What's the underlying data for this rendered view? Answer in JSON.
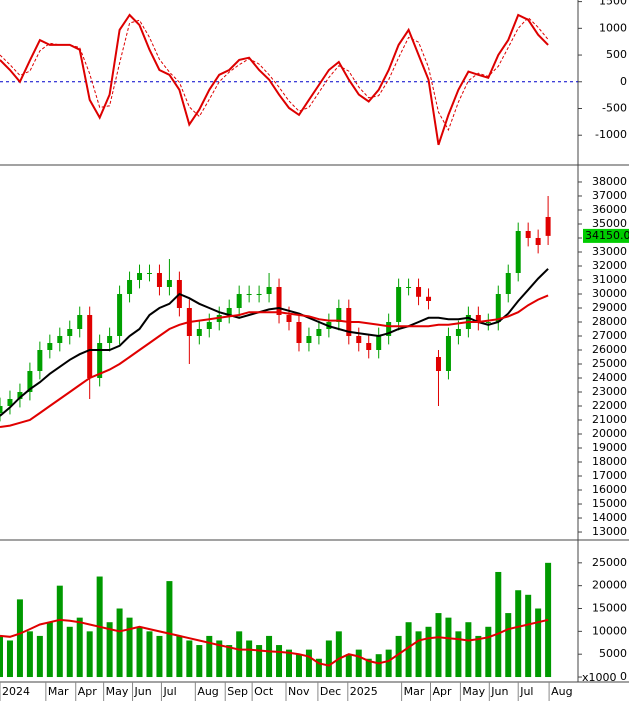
{
  "chart_data": [
    {
      "type": "line",
      "ylim": [
        -1520,
        1530
      ],
      "yticks": [
        -1000,
        -500,
        0,
        500,
        1000,
        1500
      ],
      "xlim": [
        0,
        58
      ],
      "zero_line": {
        "value": 0,
        "color": "#0000cc"
      },
      "series": [
        {
          "color": "#dd0000",
          "style": "solid",
          "values": [
            410,
            220,
            0,
            400,
            780,
            690,
            690,
            690,
            600,
            -340,
            -670,
            -240,
            970,
            1250,
            1060,
            600,
            220,
            130,
            -150,
            -800,
            -520,
            -150,
            130,
            220,
            410,
            450,
            220,
            40,
            -240,
            -490,
            -620,
            -340,
            -60,
            220,
            370,
            40,
            -240,
            -370,
            -150,
            220,
            690,
            970,
            500,
            40,
            -1180,
            -620,
            -150,
            190,
            130,
            75,
            500,
            780,
            1250,
            1160,
            880,
            690
          ]
        },
        {
          "color": "#dd0000",
          "style": "dashed",
          "values": [
            500,
            320,
            120,
            200,
            580,
            720,
            690,
            690,
            640,
            150,
            -480,
            -450,
            350,
            1100,
            1150,
            830,
            420,
            180,
            -10,
            -470,
            -650,
            -330,
            0,
            180,
            320,
            430,
            330,
            130,
            -100,
            -360,
            -550,
            -480,
            -200,
            80,
            300,
            200,
            -100,
            -300,
            -260,
            40,
            450,
            830,
            740,
            270,
            -570,
            -900,
            -380,
            20,
            160,
            100,
            290,
            640,
            1000,
            1200,
            1020,
            790
          ]
        }
      ]
    },
    {
      "type": "candlestick",
      "ylim": [
        12430,
        39070
      ],
      "xlim": [
        0,
        58
      ],
      "yticks": [
        13000,
        14000,
        15000,
        16000,
        17000,
        18000,
        19000,
        20000,
        21000,
        22000,
        23000,
        24000,
        25000,
        26000,
        27000,
        28000,
        29000,
        30000,
        31000,
        32000,
        33000,
        34000,
        35000,
        36000,
        37000,
        38000
      ],
      "up_color": "#00a000",
      "down_color": "#e00000",
      "open": [
        21500,
        22000,
        22500,
        23000,
        24500,
        26000,
        26500,
        27000,
        27500,
        28500,
        24000,
        26500,
        27000,
        30000,
        31000,
        31500,
        31500,
        30500,
        31000,
        29000,
        27000,
        27500,
        28000,
        28500,
        29000,
        30000,
        30000,
        30000,
        30500,
        28500,
        28000,
        26500,
        27000,
        27500,
        28000,
        29000,
        27000,
        26500,
        26000,
        27000,
        28000,
        30500,
        30500,
        29800,
        25500,
        24500,
        27000,
        27500,
        28500,
        28000,
        28000,
        30000,
        31500,
        34500,
        34000,
        35500
      ],
      "high": [
        22600,
        23100,
        23600,
        25100,
        26600,
        27100,
        27600,
        28100,
        29100,
        29100,
        27100,
        27600,
        30600,
        31600,
        32100,
        32100,
        32100,
        32500,
        31600,
        29600,
        28100,
        28600,
        29100,
        29600,
        30600,
        30600,
        30600,
        31500,
        31100,
        29100,
        28600,
        27600,
        28100,
        28600,
        29600,
        29600,
        27600,
        27100,
        27600,
        28600,
        31100,
        31100,
        31100,
        30400,
        26000,
        27600,
        28100,
        29100,
        29100,
        28600,
        30600,
        32100,
        35100,
        35100,
        34600,
        37000
      ],
      "low": [
        20900,
        21400,
        21900,
        22400,
        23900,
        25400,
        25900,
        26400,
        26900,
        22500,
        23400,
        25900,
        26400,
        29400,
        30400,
        30900,
        29900,
        29900,
        28400,
        25000,
        26400,
        26900,
        27400,
        27900,
        28400,
        29400,
        29400,
        29400,
        27900,
        27400,
        25900,
        25900,
        26400,
        26900,
        27400,
        26400,
        25900,
        25400,
        25400,
        26400,
        27400,
        29900,
        29200,
        28900,
        22000,
        23900,
        26400,
        26900,
        27400,
        27400,
        27400,
        29400,
        30900,
        33400,
        32900,
        33500
      ],
      "close": [
        22000,
        22500,
        23000,
        24500,
        26000,
        26500,
        27000,
        27500,
        28500,
        24000,
        26500,
        27000,
        30000,
        31000,
        31500,
        31500,
        30500,
        31000,
        29000,
        27000,
        27500,
        28000,
        28500,
        29000,
        30000,
        30000,
        30000,
        30500,
        28500,
        28000,
        26500,
        27000,
        27500,
        28000,
        29000,
        27000,
        26500,
        26000,
        27000,
        28000,
        30500,
        30500,
        29800,
        29500,
        24500,
        27000,
        27500,
        28500,
        28000,
        28000,
        30000,
        31500,
        34500,
        34000,
        33500,
        34150
      ],
      "series": [
        {
          "color": "#000000",
          "values": [
            21300,
            21900,
            22600,
            23200,
            23700,
            24300,
            24800,
            25300,
            25700,
            26000,
            26000,
            26000,
            26300,
            27000,
            27500,
            28500,
            29000,
            29300,
            30000,
            29700,
            29300,
            29000,
            28700,
            28500,
            28300,
            28500,
            28700,
            28900,
            29000,
            28800,
            28600,
            28300,
            28000,
            27700,
            27500,
            27300,
            27200,
            27100,
            27000,
            27200,
            27500,
            27700,
            28000,
            28300,
            28300,
            28200,
            28200,
            28300,
            28000,
            27800,
            28000,
            28600,
            29500,
            30300,
            31100,
            31800
          ]
        },
        {
          "color": "#e00000",
          "values": [
            20500,
            20600,
            20800,
            21000,
            21500,
            22000,
            22500,
            23000,
            23500,
            24000,
            24300,
            24600,
            25000,
            25500,
            26000,
            26500,
            27000,
            27500,
            27800,
            28000,
            28100,
            28200,
            28300,
            28400,
            28500,
            28700,
            28700,
            28700,
            28700,
            28600,
            28500,
            28400,
            28200,
            28100,
            28100,
            28000,
            28000,
            27900,
            27800,
            27700,
            27700,
            27700,
            27700,
            27700,
            27800,
            27800,
            27900,
            28000,
            28000,
            28100,
            28200,
            28400,
            28700,
            29200,
            29600,
            29900
          ]
        }
      ],
      "last_price": {
        "value": 34150,
        "label": "34150.00",
        "color": "#00cc00"
      }
    },
    {
      "type": "bar",
      "ylim": [
        -650,
        29560
      ],
      "xlim": [
        0,
        58
      ],
      "yticks": [
        0,
        5000,
        10000,
        15000,
        20000,
        25000
      ],
      "unit_label": "x1000",
      "color": "#009900",
      "values": [
        9000,
        8000,
        17000,
        10000,
        9000,
        12000,
        20000,
        11000,
        13000,
        10000,
        22000,
        12000,
        15000,
        13000,
        11000,
        10000,
        9000,
        21000,
        9000,
        8000,
        7000,
        9000,
        8000,
        7000,
        10000,
        8000,
        7000,
        9000,
        7000,
        6000,
        5000,
        6000,
        4000,
        8000,
        10000,
        5000,
        6000,
        4000,
        5000,
        6000,
        9000,
        12000,
        10000,
        11000,
        14000,
        13000,
        10000,
        12000,
        9000,
        11000,
        23000,
        14000,
        19000,
        18000,
        15000,
        25000
      ],
      "series": [
        {
          "color": "#e00000",
          "values": [
            9000,
            8800,
            9500,
            10500,
            11500,
            12000,
            12500,
            12300,
            12000,
            11500,
            11000,
            10500,
            10000,
            10500,
            11000,
            10500,
            10000,
            9500,
            9000,
            8500,
            8000,
            7500,
            7000,
            6500,
            6000,
            6000,
            5800,
            5600,
            5500,
            5300,
            5000,
            4500,
            3000,
            2500,
            4000,
            5000,
            4500,
            3500,
            3000,
            3500,
            5000,
            6500,
            8000,
            8500,
            8700,
            8500,
            8300,
            8000,
            8300,
            8700,
            9500,
            10500,
            11000,
            11500,
            12000,
            12500
          ]
        }
      ],
      "xticks": [
        {
          "value": 0,
          "label": "2024"
        },
        {
          "value": 4.6,
          "label": "Mar"
        },
        {
          "value": 7.6,
          "label": "Apr"
        },
        {
          "value": 10.4,
          "label": "May"
        },
        {
          "value": 13.3,
          "label": "Jun"
        },
        {
          "value": 16.2,
          "label": "Jul"
        },
        {
          "value": 19.6,
          "label": "Aug"
        },
        {
          "value": 22.6,
          "label": "Sep"
        },
        {
          "value": 25.3,
          "label": "Oct"
        },
        {
          "value": 28.7,
          "label": "Nov"
        },
        {
          "value": 31.9,
          "label": "Dec"
        },
        {
          "value": 34.9,
          "label": "2025"
        },
        {
          "value": 40.3,
          "label": "Mar"
        },
        {
          "value": 43.2,
          "label": "Apr"
        },
        {
          "value": 46.2,
          "label": "May"
        },
        {
          "value": 49.1,
          "label": "Jun"
        },
        {
          "value": 52,
          "label": "Jul"
        },
        {
          "value": 55.1,
          "label": "Aug"
        }
      ]
    }
  ]
}
